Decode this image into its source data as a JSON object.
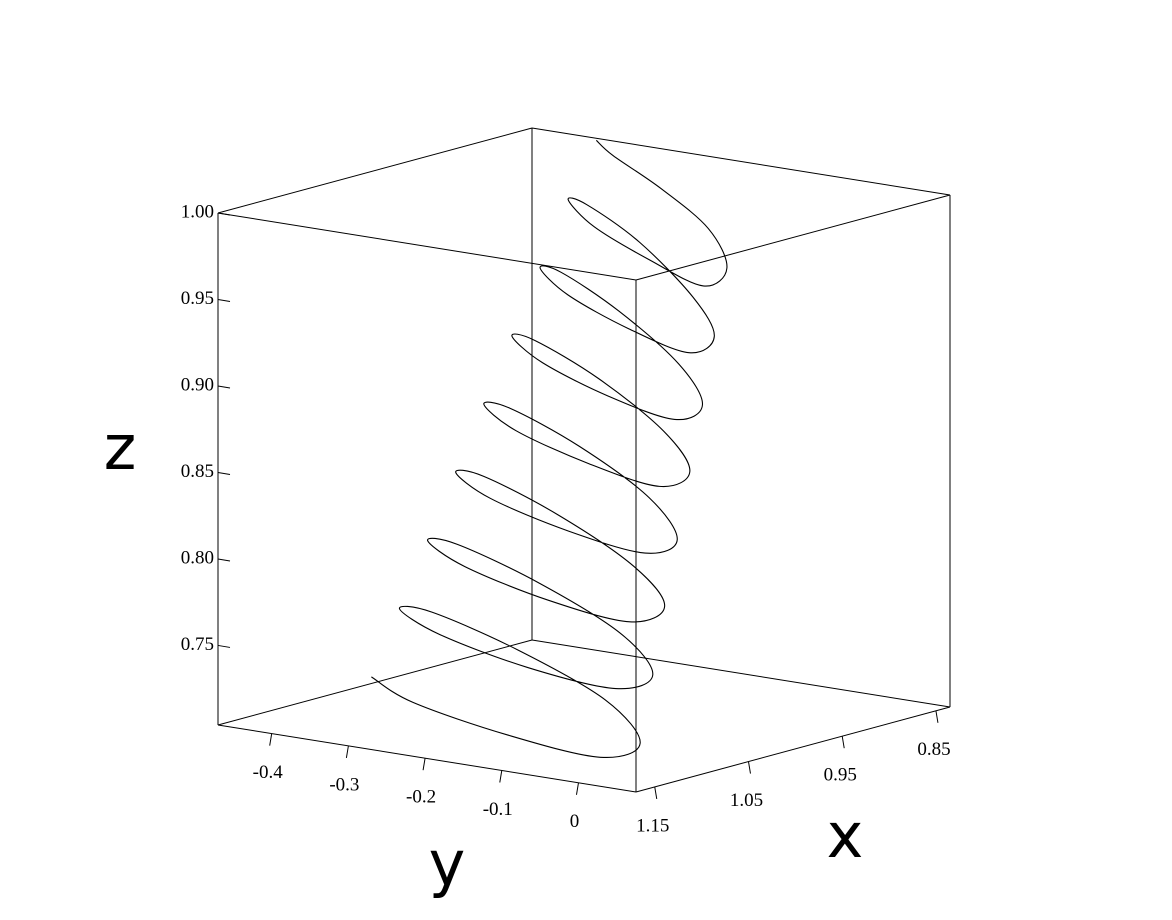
{
  "chart_data": {
    "type": "line3d",
    "x_label": "x",
    "y_label": "y",
    "z_label": "z",
    "xlim": [
      0.835,
      1.17
    ],
    "ylim": [
      -0.47,
      0.075
    ],
    "zlim": [
      0.704,
      1.0
    ],
    "xticks": [
      0.85,
      0.95,
      1.05,
      1.15
    ],
    "yticks": [
      -0.4,
      -0.3,
      -0.2,
      -0.1,
      0
    ],
    "zticks": [
      0.75,
      {
        "value": 0.8,
        "label": "0.80"
      },
      0.85,
      {
        "value": 0.9,
        "label": "0.90"
      },
      0.95,
      {
        "value": 1.0,
        "label": "1.00"
      }
    ],
    "color": "#000000",
    "x": [
      1.08,
      1.088,
      1.114,
      1.141,
      1.15,
      1.134,
      1.101,
      1.067,
      1.05,
      1.059,
      1.089,
      1.119,
      1.13,
      1.113,
      1.076,
      1.039,
      1.02,
      1.031,
      1.064,
      1.098,
      1.11,
      1.092,
      1.051,
      1.01,
      0.99,
      1.002,
      1.039,
      1.076,
      1.09,
      1.07,
      1.026,
      0.981,
      0.96,
      0.974,
      1.014,
      1.055,
      1.07,
      1.049,
      1.001,
      0.953,
      0.93,
      0.945,
      0.989,
      1.033,
      1.05,
      1.027,
      0.976,
      0.924,
      0.9,
      0.917,
      0.964,
      1.012,
      1.03,
      1.006,
      0.951,
      0.896,
      0.87,
      0.888,
      0.939,
      0.991,
      1.01,
      0.984,
      0.925,
      0.867,
      0.84
    ],
    "y": [
      -0.38,
      -0.316,
      -0.161,
      -0.007,
      0.056,
      -0.009,
      -0.163,
      -0.317,
      -0.38,
      -0.317,
      -0.165,
      -0.014,
      0.048,
      -0.015,
      -0.167,
      -0.318,
      -0.38,
      -0.318,
      -0.169,
      -0.021,
      0.039,
      -0.023,
      -0.171,
      -0.319,
      -0.38,
      -0.32,
      -0.173,
      -0.028,
      0.031,
      -0.03,
      -0.175,
      -0.32,
      -0.38,
      -0.321,
      -0.177,
      -0.035,
      0.023,
      -0.037,
      -0.18,
      -0.322,
      -0.38,
      -0.322,
      -0.182,
      -0.042,
      0.015,
      -0.044,
      -0.184,
      -0.323,
      -0.38,
      -0.323,
      -0.186,
      -0.049,
      0.006,
      -0.051,
      -0.188,
      -0.324,
      -0.38,
      -0.324,
      -0.19,
      -0.056,
      -0.002,
      -0.058,
      -0.192,
      -0.325,
      -0.38
    ],
    "z": [
      0.725,
      0.716,
      0.712,
      0.714,
      0.728,
      0.746,
      0.759,
      0.765,
      0.76,
      0.751,
      0.747,
      0.75,
      0.764,
      0.781,
      0.794,
      0.8,
      0.795,
      0.786,
      0.782,
      0.785,
      0.8,
      0.816,
      0.829,
      0.835,
      0.83,
      0.821,
      0.818,
      0.821,
      0.835,
      0.852,
      0.865,
      0.87,
      0.865,
      0.856,
      0.853,
      0.856,
      0.871,
      0.887,
      0.9,
      0.905,
      0.9,
      0.891,
      0.888,
      0.891,
      0.906,
      0.922,
      0.935,
      0.94,
      0.935,
      0.926,
      0.923,
      0.926,
      0.942,
      0.957,
      0.971,
      0.975,
      0.97,
      0.961,
      0.959,
      0.961,
      0.978,
      0.993,
      0.998,
      0.999,
      1.0
    ]
  }
}
